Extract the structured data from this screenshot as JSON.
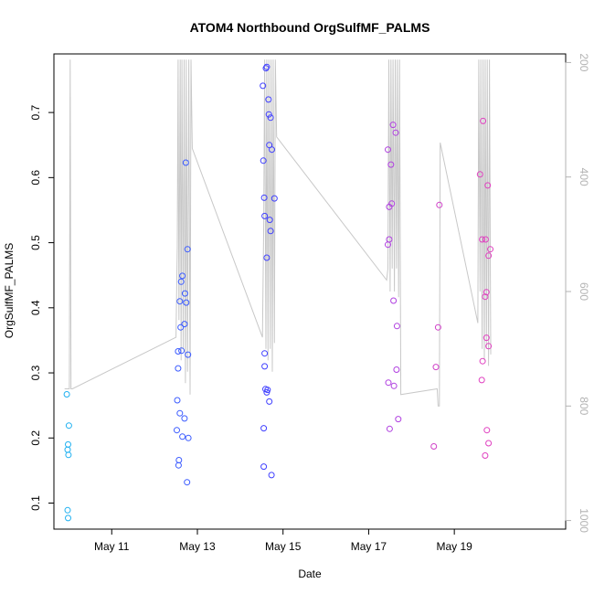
{
  "chart_data": {
    "type": "scatter",
    "title": "ATOM4 Northbound OrgSulfMF_PALMS",
    "xlabel": "Date",
    "ylabel": "OrgSulfMF_PALMS",
    "x_unit": "days since May 10 00:00",
    "xlim": [
      -0.35,
      11.6
    ],
    "ylim": [
      0.06,
      0.79
    ],
    "y_ticks": [
      0.1,
      0.2,
      0.3,
      0.4,
      0.5,
      0.6,
      0.7
    ],
    "y_tick_labels": [
      "0.1",
      "0.2",
      "0.3",
      "0.4",
      "0.5",
      "0.6",
      "0.7"
    ],
    "x_ticks": [
      1,
      3,
      5,
      7,
      9
    ],
    "x_tick_labels": [
      "May 11",
      "May 13",
      "May 15",
      "May 17",
      "May 19"
    ],
    "right_axis": {
      "label": "",
      "color": "#b3b3b3",
      "lim": [
        1015,
        185
      ],
      "ticks": [
        200,
        400,
        600,
        800,
        1000
      ],
      "tick_labels": [
        "200",
        "400",
        "600",
        "800",
        "1000"
      ]
    },
    "altitude_profile": {
      "color": "#c8c8c8",
      "points": [
        [
          -0.1,
          770
        ],
        [
          0.01,
          770
        ],
        [
          0.03,
          195
        ],
        [
          0.05,
          770
        ],
        [
          0.08,
          770
        ],
        [
          2.5,
          680
        ],
        [
          2.53,
          520
        ],
        [
          2.55,
          195
        ],
        [
          2.57,
          650
        ],
        [
          2.6,
          195
        ],
        [
          2.62,
          720
        ],
        [
          2.64,
          195
        ],
        [
          2.67,
          700
        ],
        [
          2.69,
          195
        ],
        [
          2.72,
          760
        ],
        [
          2.74,
          195
        ],
        [
          2.77,
          740
        ],
        [
          2.8,
          195
        ],
        [
          2.83,
          780
        ],
        [
          2.85,
          195
        ],
        [
          2.88,
          350
        ],
        [
          4.52,
          680
        ],
        [
          4.55,
          480
        ],
        [
          4.57,
          195
        ],
        [
          4.6,
          700
        ],
        [
          4.62,
          195
        ],
        [
          4.65,
          720
        ],
        [
          4.67,
          195
        ],
        [
          4.7,
          700
        ],
        [
          4.72,
          195
        ],
        [
          4.75,
          740
        ],
        [
          4.77,
          195
        ],
        [
          4.8,
          690
        ],
        [
          4.82,
          195
        ],
        [
          4.85,
          330
        ],
        [
          7.42,
          580
        ],
        [
          7.45,
          560
        ],
        [
          7.47,
          195
        ],
        [
          7.5,
          600
        ],
        [
          7.52,
          195
        ],
        [
          7.55,
          560
        ],
        [
          7.57,
          195
        ],
        [
          7.6,
          600
        ],
        [
          7.62,
          195
        ],
        [
          7.65,
          560
        ],
        [
          7.67,
          195
        ],
        [
          7.7,
          610
        ],
        [
          7.72,
          195
        ],
        [
          7.75,
          780
        ],
        [
          8.6,
          770
        ],
        [
          8.62,
          800
        ],
        [
          8.65,
          800
        ],
        [
          8.67,
          340
        ],
        [
          9.55,
          655
        ],
        [
          9.57,
          195
        ],
        [
          9.6,
          600
        ],
        [
          9.62,
          195
        ],
        [
          9.65,
          700
        ],
        [
          9.67,
          195
        ],
        [
          9.7,
          720
        ],
        [
          9.72,
          195
        ],
        [
          9.75,
          700
        ],
        [
          9.77,
          195
        ],
        [
          9.8,
          730
        ],
        [
          9.82,
          195
        ],
        [
          9.85,
          710
        ]
      ]
    },
    "series": [
      {
        "color": "#1fb0f0",
        "points": [
          [
            -0.05,
            0.267
          ],
          [
            0.0,
            0.219
          ],
          [
            -0.02,
            0.19
          ],
          [
            -0.03,
            0.182
          ],
          [
            -0.01,
            0.174
          ],
          [
            -0.03,
            0.089
          ],
          [
            -0.02,
            0.077
          ]
        ]
      },
      {
        "color": "#3b5bff",
        "points": [
          [
            2.73,
            0.623
          ],
          [
            2.77,
            0.49
          ],
          [
            2.65,
            0.449
          ],
          [
            2.62,
            0.44
          ],
          [
            2.71,
            0.422
          ],
          [
            2.59,
            0.41
          ],
          [
            2.74,
            0.408
          ],
          [
            2.7,
            0.375
          ],
          [
            2.61,
            0.37
          ],
          [
            2.55,
            0.333
          ],
          [
            2.63,
            0.334
          ],
          [
            2.78,
            0.328
          ],
          [
            2.55,
            0.307
          ],
          [
            2.53,
            0.258
          ],
          [
            2.59,
            0.238
          ],
          [
            2.7,
            0.23
          ],
          [
            2.52,
            0.212
          ],
          [
            2.65,
            0.202
          ],
          [
            2.79,
            0.2
          ],
          [
            2.57,
            0.166
          ],
          [
            2.56,
            0.158
          ],
          [
            2.76,
            0.132
          ]
        ]
      },
      {
        "color": "#4040ff",
        "points": [
          [
            4.53,
            0.741
          ],
          [
            4.62,
            0.77
          ],
          [
            4.6,
            0.768
          ],
          [
            4.66,
            0.72
          ],
          [
            4.67,
            0.697
          ],
          [
            4.71,
            0.692
          ],
          [
            4.68,
            0.65
          ],
          [
            4.74,
            0.643
          ],
          [
            4.54,
            0.626
          ],
          [
            4.56,
            0.569
          ],
          [
            4.8,
            0.568
          ],
          [
            4.57,
            0.541
          ],
          [
            4.69,
            0.535
          ],
          [
            4.71,
            0.518
          ],
          [
            4.62,
            0.477
          ],
          [
            4.57,
            0.33
          ],
          [
            4.57,
            0.31
          ],
          [
            4.59,
            0.275
          ],
          [
            4.64,
            0.274
          ],
          [
            4.62,
            0.27
          ],
          [
            4.68,
            0.256
          ],
          [
            4.55,
            0.215
          ],
          [
            4.55,
            0.156
          ],
          [
            4.73,
            0.143
          ]
        ]
      },
      {
        "color": "#b040e0",
        "points": [
          [
            7.57,
            0.681
          ],
          [
            7.63,
            0.669
          ],
          [
            7.45,
            0.643
          ],
          [
            7.52,
            0.62
          ],
          [
            7.54,
            0.56
          ],
          [
            7.48,
            0.555
          ],
          [
            7.48,
            0.505
          ],
          [
            7.45,
            0.497
          ],
          [
            7.58,
            0.411
          ],
          [
            7.66,
            0.372
          ],
          [
            7.65,
            0.305
          ],
          [
            7.46,
            0.285
          ],
          [
            7.59,
            0.28
          ],
          [
            7.69,
            0.229
          ],
          [
            7.49,
            0.214
          ]
        ]
      },
      {
        "color": "#d040c8",
        "points": [
          [
            8.65,
            0.558
          ],
          [
            8.62,
            0.37
          ],
          [
            8.57,
            0.309
          ],
          [
            8.52,
            0.187
          ]
        ]
      },
      {
        "color": "#e040c0",
        "points": [
          [
            9.67,
            0.687
          ],
          [
            9.6,
            0.605
          ],
          [
            9.78,
            0.588
          ],
          [
            9.65,
            0.505
          ],
          [
            9.73,
            0.505
          ],
          [
            9.84,
            0.49
          ],
          [
            9.8,
            0.48
          ],
          [
            9.75,
            0.424
          ],
          [
            9.72,
            0.417
          ],
          [
            9.75,
            0.354
          ],
          [
            9.66,
            0.318
          ],
          [
            9.8,
            0.341
          ],
          [
            9.64,
            0.289
          ],
          [
            9.76,
            0.212
          ],
          [
            9.8,
            0.192
          ],
          [
            9.72,
            0.173
          ]
        ]
      }
    ]
  }
}
